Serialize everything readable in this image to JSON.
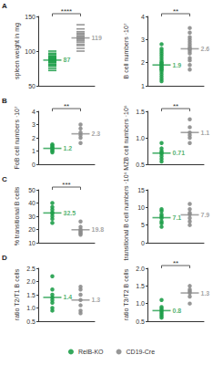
{
  "chart_data": [
    {
      "type": "scatter",
      "title": "A",
      "y_label": "spleen weight in mg",
      "annotation": "****",
      "marker": "dash",
      "tick_labels": "y",
      "legend": "bottom",
      "ylim": [
        50,
        150
      ],
      "yticks": [
        50,
        100,
        150
      ],
      "series": [
        {
          "name": "RelB-KO",
          "color": "#1f9e4a",
          "mean": 87,
          "values": [
            72,
            75,
            78,
            80,
            81,
            83,
            84,
            85,
            86,
            87,
            88,
            88,
            89,
            90,
            91,
            92,
            93,
            95,
            97,
            100
          ]
        },
        {
          "name": "CD19-Cre",
          "color": "#8c8c8c",
          "mean": 119,
          "values": [
            100,
            104,
            108,
            110,
            113,
            115,
            117,
            118,
            120,
            122,
            124,
            126,
            128,
            132,
            138
          ]
        }
      ]
    },
    {
      "type": "scatter",
      "y_label": "B cell numbers ·10⁷",
      "annotation": "**",
      "marker": "circle",
      "tick_labels": "y",
      "ylim": [
        1,
        4
      ],
      "yticks": [
        1,
        2,
        3,
        4
      ],
      "series": [
        {
          "name": "RelB-KO",
          "color": "#1f9e4a",
          "mean": 1.9,
          "values": [
            1.2,
            1.3,
            1.4,
            1.5,
            1.6,
            1.7,
            1.7,
            1.8,
            1.8,
            1.9,
            1.9,
            2.0,
            2.0,
            2.1,
            2.2,
            2.3,
            2.4,
            2.5,
            2.6,
            2.8
          ]
        },
        {
          "name": "CD19-Cre",
          "color": "#8c8c8c",
          "mean": 2.6,
          "values": [
            1.7,
            1.9,
            2.1,
            2.2,
            2.4,
            2.5,
            2.6,
            2.6,
            2.7,
            2.8,
            2.9,
            3.0,
            3.1,
            3.3,
            3.5
          ]
        }
      ]
    },
    {
      "type": "scatter",
      "title": "B",
      "y_label": "FoB cell numbers ·10⁷",
      "annotation": "**",
      "marker": "circle",
      "tick_labels": "y",
      "ylim": [
        0,
        4
      ],
      "yticks": [
        0,
        1,
        2,
        3,
        4
      ],
      "series": [
        {
          "name": "RelB-KO",
          "color": "#1f9e4a",
          "mean": 1.2,
          "values": [
            0.9,
            1.0,
            1.1,
            1.2,
            1.3,
            1.4,
            1.5
          ]
        },
        {
          "name": "CD19-Cre",
          "color": "#8c8c8c",
          "mean": 2.3,
          "values": [
            1.6,
            2.0,
            2.2,
            2.4,
            2.7,
            3.0
          ]
        }
      ]
    },
    {
      "type": "scatter",
      "y_label": "MZB cell numbers ·10⁶",
      "annotation": "**",
      "marker": "circle",
      "tick_labels": "y",
      "ylim": [
        0.5,
        1.5
      ],
      "yticks": [
        0.5,
        {
          "value": 1,
          "label": "1.0"
        },
        1.5
      ],
      "series": [
        {
          "name": "RelB-KO",
          "color": "#1f9e4a",
          "mean": 0.71,
          "values": [
            0.55,
            0.6,
            0.65,
            0.7,
            0.72,
            0.75,
            0.8,
            0.9
          ]
        },
        {
          "name": "CD19-Cre",
          "color": "#8c8c8c",
          "mean": 1.1,
          "values": [
            0.9,
            1.0,
            1.05,
            1.1,
            1.2,
            1.35
          ]
        }
      ]
    },
    {
      "type": "scatter",
      "title": "C",
      "y_label": "% transitional B cells",
      "annotation": "***",
      "marker": "circle",
      "tick_labels": "y",
      "ylim": [
        10,
        50
      ],
      "yticks": [
        10,
        20,
        30,
        40,
        50
      ],
      "series": [
        {
          "name": "RelB-KO",
          "color": "#1f9e4a",
          "mean": 32.5,
          "values": [
            25,
            28,
            30,
            32,
            33,
            35,
            37,
            40
          ]
        },
        {
          "name": "CD19-Cre",
          "color": "#8c8c8c",
          "mean": 19.8,
          "values": [
            16,
            17,
            18,
            19,
            20,
            22,
            26
          ]
        }
      ]
    },
    {
      "type": "scatter",
      "y_label": "transitional B cell numbers ·10⁶",
      "marker": "circle",
      "tick_labels": "y",
      "ylim": [
        0,
        15
      ],
      "yticks": [
        0,
        5,
        10,
        15
      ],
      "series": [
        {
          "name": "RelB-KO",
          "color": "#1f9e4a",
          "mean": 7.1,
          "values": [
            4.5,
            5.5,
            6,
            7,
            7.5,
            8,
            9,
            9.5
          ]
        },
        {
          "name": "CD19-Cre",
          "color": "#8c8c8c",
          "mean": 7.9,
          "values": [
            5,
            6,
            7,
            8,
            8.5,
            9.5,
            11
          ]
        }
      ]
    },
    {
      "type": "scatter",
      "title": "D",
      "y_label": "ratio T2/T1 B cells",
      "marker": "circle",
      "tick_labels": "y",
      "ylim": [
        0.5,
        2.5
      ],
      "yticks": [
        0.5,
        {
          "value": 1,
          "label": "1.0"
        },
        1.5,
        {
          "value": 2,
          "label": "2.0"
        },
        2.5
      ],
      "series": [
        {
          "name": "RelB-KO",
          "color": "#1f9e4a",
          "mean": 1.4,
          "values": [
            0.9,
            1.0,
            1.2,
            1.3,
            1.4,
            1.5,
            1.7,
            2.2
          ]
        },
        {
          "name": "CD19-Cre",
          "color": "#8c8c8c",
          "mean": 1.3,
          "values": [
            0.8,
            0.9,
            1.1,
            1.3,
            1.5,
            1.7,
            1.8
          ]
        }
      ]
    },
    {
      "type": "scatter",
      "y_label": "ratio T3/T2 B cells",
      "annotation": "**",
      "marker": "circle",
      "tick_labels": "y",
      "ylim": [
        0.5,
        2
      ],
      "yticks": [
        0.5,
        {
          "value": 1,
          "label": "1.0"
        },
        1.5,
        {
          "value": 2,
          "label": "2.0"
        }
      ],
      "series": [
        {
          "name": "RelB-KO",
          "color": "#1f9e4a",
          "mean": 0.8,
          "values": [
            0.6,
            0.65,
            0.7,
            0.75,
            0.8,
            0.85,
            0.9,
            1.1
          ]
        },
        {
          "name": "CD19-Cre",
          "color": "#8c8c8c",
          "mean": 1.3,
          "values": [
            1.0,
            1.2,
            1.3,
            1.35,
            1.4,
            1.5
          ]
        }
      ]
    }
  ]
}
